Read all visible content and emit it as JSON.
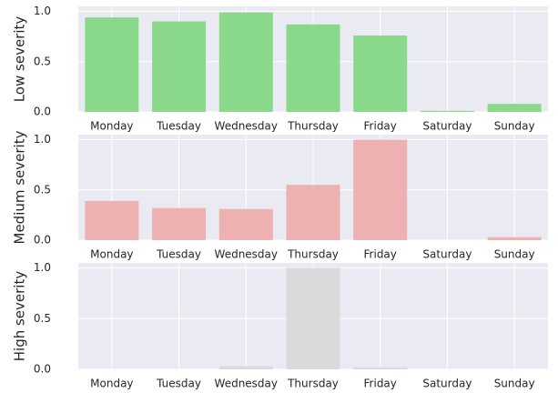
{
  "chart_data": [
    {
      "type": "bar",
      "ylabel": "Low severity",
      "categories": [
        "Monday",
        "Tuesday",
        "Wednesday",
        "Thursday",
        "Friday",
        "Saturday",
        "Sunday"
      ],
      "values": [
        0.94,
        0.9,
        0.99,
        0.87,
        0.76,
        0.01,
        0.08
      ],
      "color": "#8ad98b",
      "ylim": [
        0,
        1.05
      ],
      "yticks": [
        {
          "value": 0,
          "label": "0.0"
        },
        0.5,
        {
          "value": 1,
          "label": "1.0"
        }
      ],
      "grid": true
    },
    {
      "type": "bar",
      "ylabel": "Medium severity",
      "categories": [
        "Monday",
        "Tuesday",
        "Wednesday",
        "Thursday",
        "Friday",
        "Saturday",
        "Sunday"
      ],
      "values": [
        0.39,
        0.32,
        0.31,
        0.55,
        1.0,
        0,
        0.03
      ],
      "color": "#eeb1b1",
      "ylim": [
        0,
        1.05
      ],
      "yticks": [
        {
          "value": 0,
          "label": "0.0"
        },
        0.5,
        {
          "value": 1,
          "label": "1.0"
        }
      ],
      "grid": true
    },
    {
      "type": "bar",
      "ylabel": "High severity",
      "categories": [
        "Monday",
        "Tuesday",
        "Wednesday",
        "Thursday",
        "Friday",
        "Saturday",
        "Sunday"
      ],
      "values": [
        0,
        0,
        0.03,
        1.0,
        0.02,
        0,
        0
      ],
      "color": "#dad9dc",
      "ylim": [
        0,
        1.05
      ],
      "yticks": [
        {
          "value": 0,
          "label": "0.0"
        },
        0.5,
        {
          "value": 1,
          "label": "1.0"
        }
      ],
      "grid": true
    }
  ]
}
